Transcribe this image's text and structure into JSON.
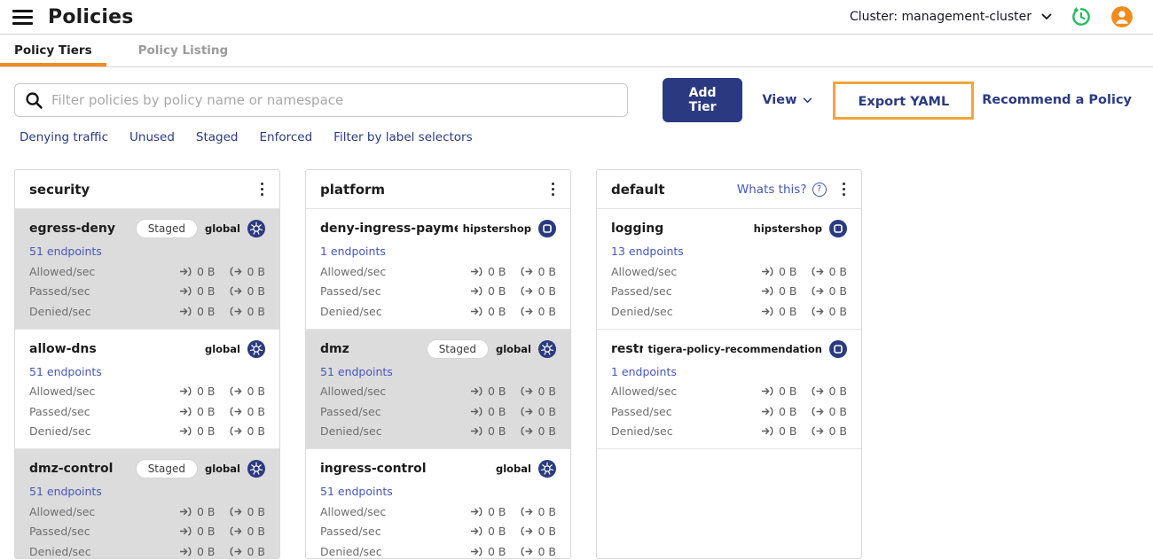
{
  "header": {
    "title": "Policies",
    "cluster_label": "Cluster: management-cluster"
  },
  "tabs": [
    {
      "label": "Policy Tiers",
      "active": true
    },
    {
      "label": "Policy Listing",
      "active": false
    }
  ],
  "toolbar": {
    "search_placeholder": "Filter policies by policy name or namespace",
    "search_value": "",
    "add_tier_label": "Add Tier",
    "view_label": "View",
    "export_yaml_label": "Export YAML",
    "recommend_label": "Recommend a Policy"
  },
  "filters": [
    "Denying traffic",
    "Unused",
    "Staged",
    "Enforced",
    "Filter by label selectors"
  ],
  "metric_labels": [
    "Allowed/sec",
    "Passed/sec",
    "Denied/sec"
  ],
  "metric_ingress_value": "0 B",
  "metric_egress_value": "0 B",
  "staged_badge_label": "Staged",
  "tiers": [
    {
      "name": "security",
      "policies": [
        {
          "name": "egress-deny",
          "staged": true,
          "scope": "global",
          "scope_type": "global",
          "endpoints": "51 endpoints"
        },
        {
          "name": "allow-dns",
          "staged": false,
          "scope": "global",
          "scope_type": "global",
          "endpoints": "51 endpoints"
        },
        {
          "name": "dmz-control",
          "staged": true,
          "scope": "global",
          "scope_type": "global",
          "endpoints": "51 endpoints"
        }
      ]
    },
    {
      "name": "platform",
      "policies": [
        {
          "name": "deny-ingress-paymentservi...",
          "staged": false,
          "scope": "hipstershop",
          "scope_type": "namespace",
          "endpoints": "1 endpoints"
        },
        {
          "name": "dmz",
          "staged": true,
          "scope": "global",
          "scope_type": "global",
          "endpoints": "51 endpoints"
        },
        {
          "name": "ingress-control",
          "staged": false,
          "scope": "global",
          "scope_type": "global",
          "endpoints": "51 endpoints"
        }
      ]
    },
    {
      "name": "default",
      "whats_this_label": "Whats this?",
      "policies": [
        {
          "name": "logging",
          "staged": false,
          "scope": "hipstershop",
          "scope_type": "namespace",
          "endpoints": "13 endpoints"
        },
        {
          "name": "restricted",
          "staged": false,
          "scope": "tigera-policy-recommendation",
          "scope_type": "namespace",
          "endpoints": "1 endpoints"
        }
      ]
    }
  ],
  "colors": {
    "navy_accent": "#2b3a80",
    "tab_underline_orange": "#f28a22",
    "export_highlight_orange": "#f2a53c",
    "link_indigo": "#4656bb",
    "staged_card_gray": "#dcdcdc",
    "history_icon_green": "#1fbf5f",
    "avatar_orange": "#ee8c1e"
  }
}
